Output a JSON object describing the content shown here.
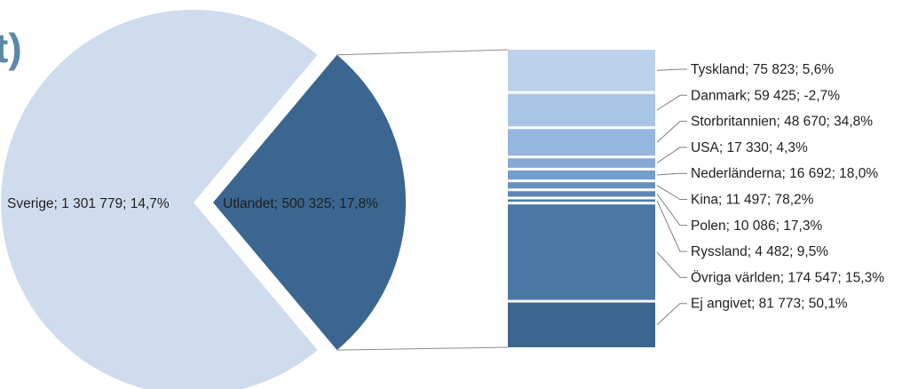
{
  "title_fragment": "t)",
  "chart_data": {
    "type": "bar-of-pie",
    "pie": [
      {
        "name": "Sverige",
        "label": "Sverige; 1 301 779; 14,7%",
        "value": 1301779,
        "change_pct": 14.7,
        "color": "#cfdcee"
      },
      {
        "name": "Utlandet",
        "label": "Utlandet; 500 325; 17,8%",
        "value": 500325,
        "change_pct": 17.8,
        "color": "#3a6690"
      }
    ],
    "bar": [
      {
        "name": "Tyskland",
        "label": "Tyskland; 75 823; 5,6%",
        "value": 75823,
        "change_pct": 5.6,
        "color": "#bcd2ea"
      },
      {
        "name": "Danmark",
        "label": "Danmark; 59 425; -2,7%",
        "value": 59425,
        "change_pct": -2.7,
        "color": "#a9c4e4"
      },
      {
        "name": "Storbritannien",
        "label": "Storbritannien; 48 670; 34,8%",
        "value": 48670,
        "change_pct": 34.8,
        "color": "#95b6de"
      },
      {
        "name": "USA",
        "label": "USA; 17 330; 4,3%",
        "value": 17330,
        "change_pct": 4.3,
        "color": "#84a9d5"
      },
      {
        "name": "Nederländerna",
        "label": "Nederländerna; 16 692; 18,0%",
        "value": 16692,
        "change_pct": 18.0,
        "color": "#749dcc"
      },
      {
        "name": "Kina",
        "label": "Kina; 11 497; 78,2%",
        "value": 11497,
        "change_pct": 78.2,
        "color": "#6690c2"
      },
      {
        "name": "Polen",
        "label": "Polen; 10 086; 17,3%",
        "value": 10086,
        "change_pct": 17.3,
        "color": "#5b86b8"
      },
      {
        "name": "Ryssland",
        "label": "Ryssland; 4 482; 9,5%",
        "value": 4482,
        "change_pct": 9.5,
        "color": "#527cad"
      },
      {
        "name": "Övriga världen",
        "label": "Övriga världen; 174 547; 15,3%",
        "value": 174547,
        "change_pct": 15.3,
        "color": "#4a78a4"
      },
      {
        "name": "Ej angivet",
        "label": "Ej angivet; 81 773; 50,1%",
        "value": 81773,
        "change_pct": 50.1,
        "color": "#3a6690"
      }
    ]
  }
}
